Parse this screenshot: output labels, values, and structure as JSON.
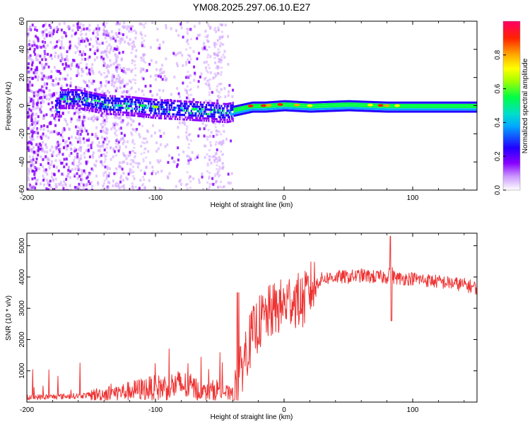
{
  "figure": {
    "title": "YM08.2025.297.06.10.E27"
  },
  "chart_data": [
    {
      "type": "heatmap",
      "title": "YM08.2025.297.06.10.E27",
      "xlabel": "Height of straight line (km)",
      "ylabel": "Frequency (Hz)",
      "xlim": [
        -200,
        150
      ],
      "ylim": [
        -60,
        60
      ],
      "xticks": [
        -200,
        -100,
        0,
        100
      ],
      "yticks": [
        -60,
        -40,
        -20,
        0,
        20,
        40,
        60
      ],
      "xtick_labels": [
        "-200",
        "-100",
        "0",
        "100"
      ],
      "ytick_labels": [
        "-60",
        "-40",
        "-20",
        "0",
        "20",
        "40",
        "60"
      ],
      "description_series": {
        "name": "dominant frequency track",
        "x": [
          -175,
          -160,
          -140,
          -120,
          -100,
          -80,
          -60,
          -45,
          -35,
          -25,
          -15,
          0,
          20,
          50,
          80,
          110,
          150
        ],
        "y": [
          6,
          6,
          2,
          1,
          -1,
          -2,
          -3,
          -4,
          -2,
          0,
          0,
          1,
          0,
          1,
          0,
          0,
          0
        ]
      },
      "colorbar": {
        "label": "Normalized spectral amplitude",
        "range": [
          0.0,
          1.0
        ],
        "ticks": [
          0.0,
          0.2,
          0.4,
          0.6,
          0.8
        ],
        "tick_labels": [
          "0.0",
          "0.2",
          "0.4",
          "0.6",
          "0.8"
        ],
        "colors": [
          "#ffffff",
          "#cc99ff",
          "#8800ff",
          "#2200ff",
          "#00aaff",
          "#00ddcc",
          "#00ff44",
          "#aaff00",
          "#ffff00",
          "#ffaa00",
          "#ff2200",
          "#ff0066"
        ]
      }
    },
    {
      "type": "line",
      "xlabel": "Height of straight line (km)",
      "ylabel": "SNR (10 * v/v)",
      "xlim": [
        -200,
        150
      ],
      "ylim": [
        0,
        5400
      ],
      "xticks": [
        -200,
        -100,
        0,
        100
      ],
      "yticks": [
        1000,
        2000,
        3000,
        4000,
        5000
      ],
      "xtick_labels": [
        "-200",
        "-100",
        "0",
        "100"
      ],
      "ytick_labels": [
        "1000",
        "2000",
        "3000",
        "4000",
        "5000"
      ],
      "color": "#ee3333",
      "series": [
        {
          "name": "SNR",
          "x": [
            -200,
            -180,
            -160,
            -140,
            -120,
            -110,
            -100,
            -90,
            -80,
            -70,
            -65,
            -60,
            -55,
            -50,
            -45,
            -42,
            -38,
            -36,
            -34,
            -32,
            -30,
            -25,
            -20,
            -15,
            -10,
            -5,
            0,
            5,
            10,
            15,
            20,
            25,
            30,
            40,
            50,
            60,
            70,
            80,
            83,
            85,
            90,
            100,
            110,
            120,
            130,
            140,
            150
          ],
          "y": [
            150,
            170,
            200,
            260,
            350,
            420,
            450,
            500,
            550,
            450,
            350,
            300,
            380,
            420,
            300,
            250,
            250,
            500,
            900,
            1300,
            1600,
            2100,
            2500,
            2700,
            2900,
            3000,
            3100,
            3300,
            3250,
            3200,
            3600,
            3800,
            3950,
            4000,
            4000,
            4050,
            4000,
            4000,
            4300,
            4000,
            3950,
            3950,
            3900,
            3850,
            3800,
            3750,
            3650
          ]
        }
      ]
    }
  ]
}
